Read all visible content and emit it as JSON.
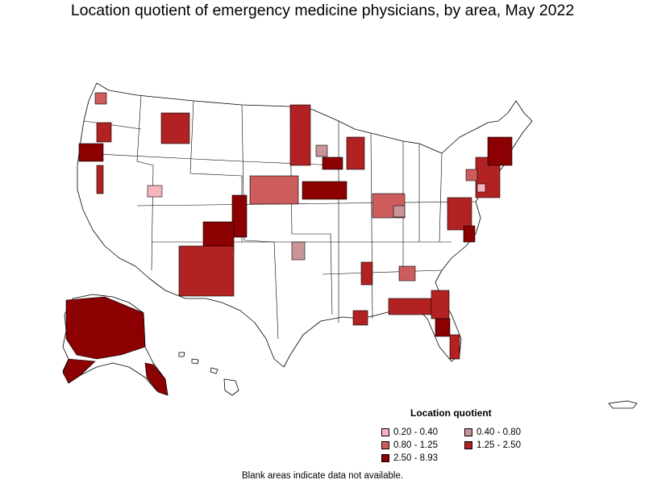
{
  "title": "Location quotient of emergency medicine physicians, by area, May 2022",
  "legend": {
    "title": "Location quotient",
    "items": [
      {
        "label": "0.20 - 0.40",
        "color": "#f4b6bc"
      },
      {
        "label": "0.40 - 0.80",
        "color": "#c99597"
      },
      {
        "label": "0.80 - 1.25",
        "color": "#cd5c5c"
      },
      {
        "label": "1.25 - 2.50",
        "color": "#b22222"
      },
      {
        "label": "2.50 - 8.93",
        "color": "#8b0000"
      }
    ]
  },
  "footnote": "Blank areas indicate data not available.",
  "colors": {
    "border": "#000000",
    "blank": "#ffffff"
  }
}
